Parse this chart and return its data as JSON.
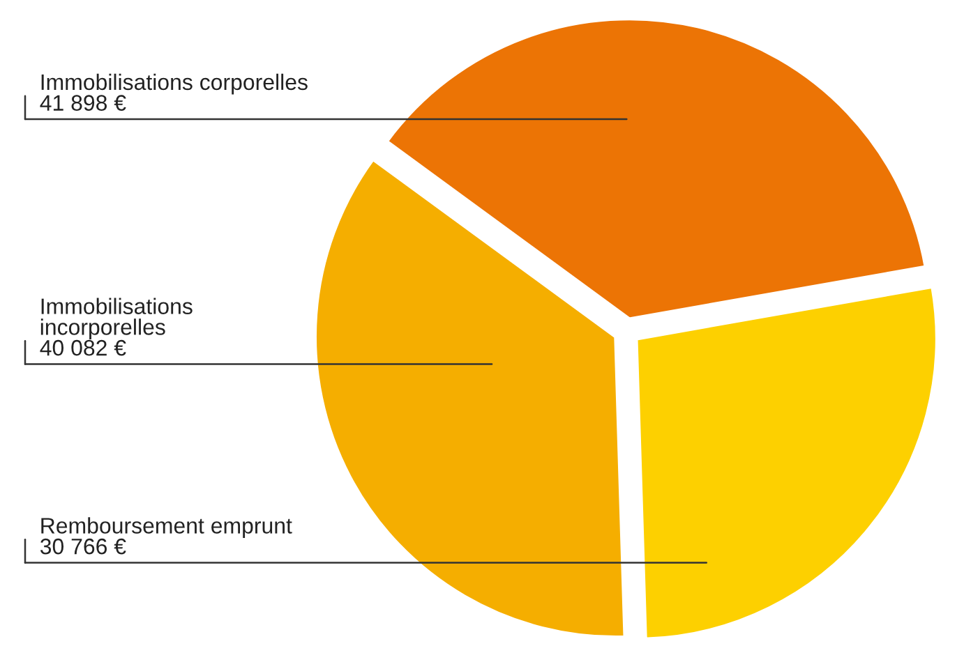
{
  "chart_data": {
    "type": "pie",
    "categories": [
      "Immobilisations corporelles",
      "Immobilisations\nincorporelles",
      "Remboursement emprunt"
    ],
    "values": [
      41898,
      40082,
      30766
    ],
    "value_labels": [
      "41 898 €",
      "40 082 €",
      "30 766 €"
    ],
    "colors": [
      "#ec7405",
      "#f5ae00",
      "#fdd000"
    ],
    "legend": false
  }
}
